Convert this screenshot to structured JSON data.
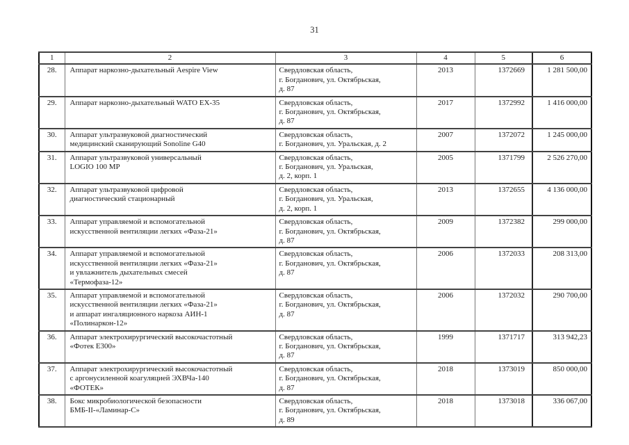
{
  "page": {
    "number": "31"
  },
  "colors": {
    "background": "#ffffff",
    "text": "#1d1d1d",
    "table_border": "#111111",
    "inner_line": "#757575"
  },
  "table": {
    "headers": [
      "1",
      "2",
      "3",
      "4",
      "5",
      "6"
    ],
    "rows": [
      {
        "num": "28.",
        "name": "Аппарат наркозно-дыхательный Aespire View",
        "address": "Свердловская область,\nг. Богданович, ул. Октябрьская,\nд. 87",
        "year": "2013",
        "id": "1372669",
        "price": "1 281 500,00"
      },
      {
        "num": "29.",
        "name": "Аппарат наркозно-дыхательный WATO EX-35",
        "address": "Свердловская область,\nг. Богданович, ул. Октябрьская,\nд. 87",
        "year": "2017",
        "id": "1372992",
        "price": "1 416 000,00"
      },
      {
        "num": "30.",
        "name": "Аппарат ультразвуковой диагностический\nмедицинский сканирующий Sonoline G40",
        "address": "Свердловская область,\nг. Богданович, ул. Уральская, д. 2",
        "year": "2007",
        "id": "1372072",
        "price": "1 245 000,00"
      },
      {
        "num": "31.",
        "name": "Аппарат ультразвуковой универсальный\nLOGIO 100 MP",
        "address": "Свердловская область,\nг. Богданович, ул. Уральская,\nд. 2, корп. 1",
        "year": "2005",
        "id": "1371799",
        "price": "2 526 270,00"
      },
      {
        "num": "32.",
        "name": "Аппарат ультразвуковой цифровой\nдиагностический стационарный",
        "address": "Свердловская область,\nг. Богданович, ул. Уральская,\nд. 2, корп. 1",
        "year": "2013",
        "id": "1372655",
        "price": "4 136 000,00"
      },
      {
        "num": "33.",
        "name": "Аппарат управляемой и вспомогательной\nискусственной вентиляции легких «Фаза-21»",
        "address": "Свердловская область,\nг. Богданович, ул. Октябрьская,\nд. 87",
        "year": "2009",
        "id": "1372382",
        "price": "299 000,00"
      },
      {
        "num": "34.",
        "name": "Аппарат управляемой и вспомогательной\nискусственной вентиляции легких «Фаза-21»\nи увлажнитель дыхательных смесей\n«Термофаза-12»",
        "address": "Свердловская область,\nг. Богданович, ул. Октябрьская,\nд. 87",
        "year": "2006",
        "id": "1372033",
        "price": "208 313,00"
      },
      {
        "num": "35.",
        "name": "Аппарат управляемой и вспомогательной\nискусственной вентиляции легких «Фаза-21»\nи аппарат ингаляционного наркоза АИН-1\n«Полинаркон-12»",
        "address": "Свердловская область,\nг. Богданович, ул. Октябрьская,\nд. 87",
        "year": "2006",
        "id": "1372032",
        "price": "290 700,00"
      },
      {
        "num": "36.",
        "name": "Аппарат электрохирургический высокочастотный\n«Фотек Е300»",
        "address": "Свердловская область,\nг. Богданович, ул. Октябрьская,\nд. 87",
        "year": "1999",
        "id": "1371717",
        "price": "313 942,23"
      },
      {
        "num": "37.",
        "name": "Аппарат электрохирургический высокочастотный\nс аргонусиленной коагуляцией ЭХВЧа-140\n«ФОТЕК»",
        "address": "Свердловская область,\nг. Богданович, ул. Октябрьская,\nд. 87",
        "year": "2018",
        "id": "1373019",
        "price": "850 000,00"
      },
      {
        "num": "38.",
        "name": "Бокс микробиологической безопасности\nБМБ-II-«Ламинар-С»",
        "address": "Свердловская область,\nг. Богданович, ул. Октябрьская,\nд. 89",
        "year": "2018",
        "id": "1373018",
        "price": "336 067,00"
      }
    ]
  }
}
